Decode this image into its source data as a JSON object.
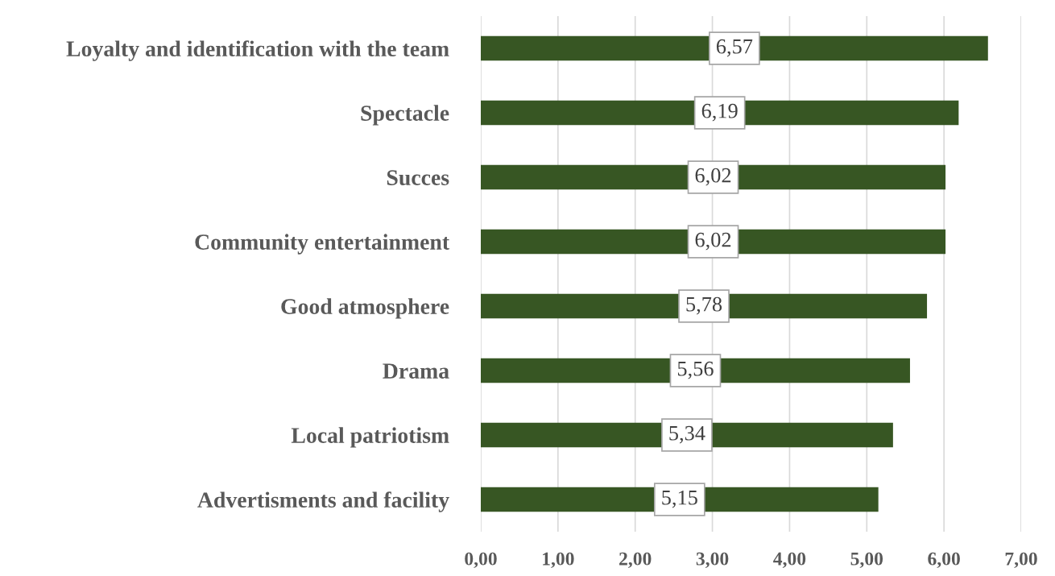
{
  "chart_data": {
    "type": "bar",
    "orientation": "horizontal",
    "categories": [
      "Loyalty and identification with the team",
      "Spectacle",
      "Succes",
      "Community entertainment",
      "Good atmosphere",
      "Drama",
      "Local patriotism",
      "Advertisments and facility"
    ],
    "values": [
      6.57,
      6.19,
      6.02,
      6.02,
      5.78,
      5.56,
      5.34,
      5.15
    ],
    "value_labels": [
      "6,57",
      "6,19",
      "6,02",
      "6,02",
      "5,78",
      "5,56",
      "5,34",
      "5,15"
    ],
    "color": "#375623",
    "xlim": [
      0,
      7
    ],
    "xticks": [
      {
        "value": 0,
        "label": "0,00"
      },
      {
        "value": 1,
        "label": "1,00"
      },
      {
        "value": 2,
        "label": "2,00"
      },
      {
        "value": 3,
        "label": "3,00"
      },
      {
        "value": 4,
        "label": "4,00"
      },
      {
        "value": 5,
        "label": "5,00"
      },
      {
        "value": 6,
        "label": "6,00"
      },
      {
        "value": 7,
        "label": "7,00"
      }
    ],
    "grid": "x"
  }
}
